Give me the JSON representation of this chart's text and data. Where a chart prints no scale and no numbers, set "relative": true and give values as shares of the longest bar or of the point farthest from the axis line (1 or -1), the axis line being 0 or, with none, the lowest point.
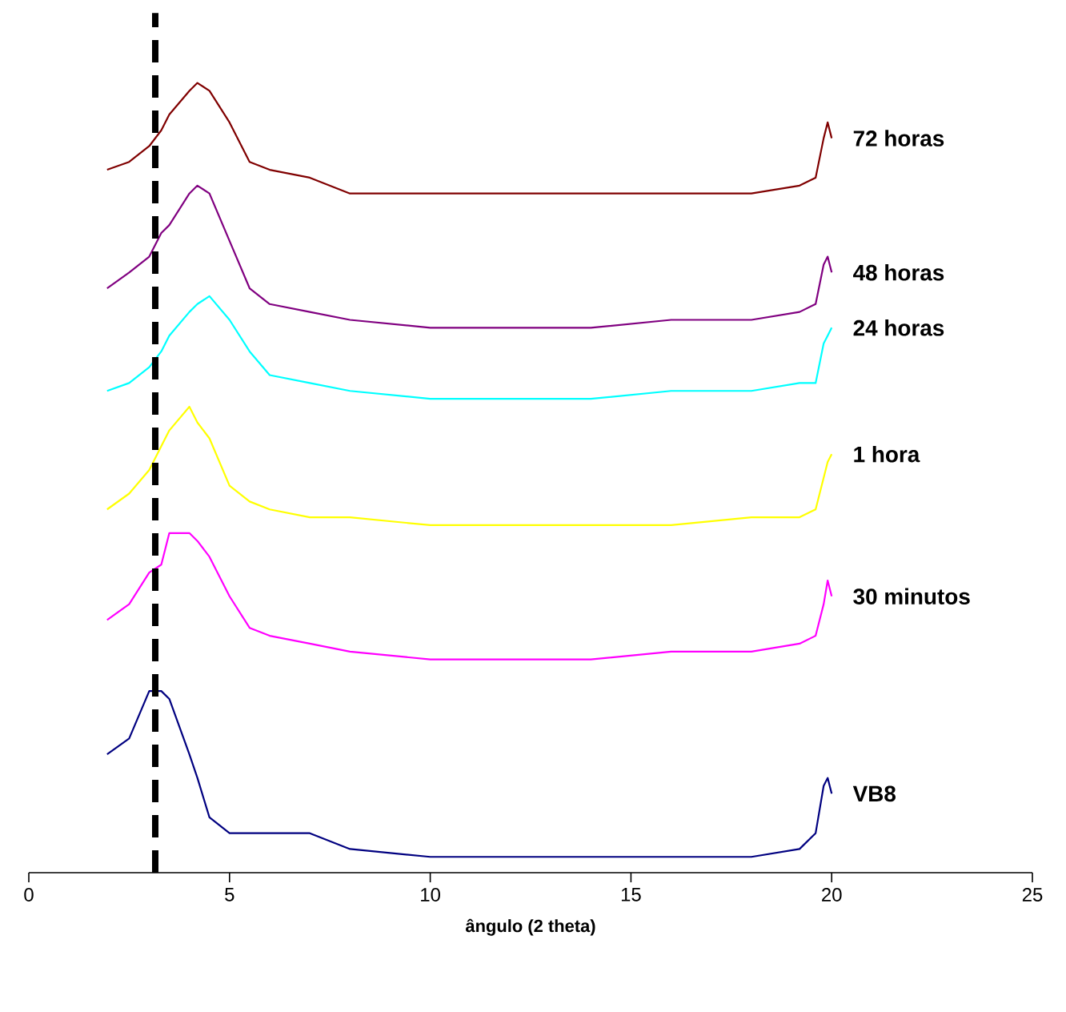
{
  "chart_data": {
    "type": "line",
    "xlabel": "ângulo (2 theta)",
    "relative": true,
    "xlim": [
      0,
      25
    ],
    "xticks": [
      0,
      5,
      10,
      15,
      20,
      25
    ],
    "x": [
      1.95,
      2.5,
      3.0,
      3.3,
      3.5,
      4.0,
      4.2,
      4.5,
      5.0,
      5.5,
      6.0,
      7.0,
      8.0,
      10,
      12,
      14,
      16,
      18,
      19.2,
      19.6,
      19.8,
      19.9,
      20.0
    ],
    "series": [
      {
        "name": "72 horas",
        "color": "#800000",
        "values": [
          0.89,
          0.9,
          0.92,
          0.94,
          0.96,
          0.99,
          1.0,
          0.99,
          0.95,
          0.9,
          0.89,
          0.88,
          0.86,
          0.86,
          0.86,
          0.86,
          0.86,
          0.86,
          0.87,
          0.88,
          0.93,
          0.95,
          0.93
        ]
      },
      {
        "name": "48 horas",
        "color": "#800080",
        "values": [
          0.74,
          0.76,
          0.78,
          0.81,
          0.82,
          0.86,
          0.87,
          0.86,
          0.8,
          0.74,
          0.72,
          0.71,
          0.7,
          0.69,
          0.69,
          0.69,
          0.7,
          0.7,
          0.71,
          0.72,
          0.77,
          0.78,
          0.76
        ]
      },
      {
        "name": "24 horas",
        "color": "#00ffff",
        "values": [
          0.61,
          0.62,
          0.64,
          0.66,
          0.68,
          0.71,
          0.72,
          0.73,
          0.7,
          0.66,
          0.63,
          0.62,
          0.61,
          0.6,
          0.6,
          0.6,
          0.61,
          0.61,
          0.62,
          0.62,
          0.67,
          0.68,
          0.69
        ]
      },
      {
        "name": "1 hora",
        "color": "#ffff00",
        "values": [
          0.46,
          0.48,
          0.51,
          0.54,
          0.56,
          0.59,
          0.57,
          0.55,
          0.49,
          0.47,
          0.46,
          0.45,
          0.45,
          0.44,
          0.44,
          0.44,
          0.44,
          0.45,
          0.45,
          0.46,
          0.5,
          0.52,
          0.53
        ]
      },
      {
        "name": "30 minutos",
        "color": "#ff00ff",
        "values": [
          0.32,
          0.34,
          0.38,
          0.39,
          0.43,
          0.43,
          0.42,
          0.4,
          0.35,
          0.31,
          0.3,
          0.29,
          0.28,
          0.27,
          0.27,
          0.27,
          0.28,
          0.28,
          0.29,
          0.3,
          0.34,
          0.37,
          0.35
        ]
      },
      {
        "name": "VB8",
        "color": "#000080",
        "values": [
          0.15,
          0.17,
          0.23,
          0.23,
          0.22,
          0.15,
          0.12,
          0.07,
          0.05,
          0.05,
          0.05,
          0.05,
          0.03,
          0.02,
          0.02,
          0.02,
          0.02,
          0.02,
          0.03,
          0.05,
          0.11,
          0.12,
          0.1
        ]
      }
    ],
    "ref_lines": [
      {
        "axis": "x",
        "value": 3.15,
        "color": "#000000",
        "line_style": "dashed"
      }
    ]
  }
}
